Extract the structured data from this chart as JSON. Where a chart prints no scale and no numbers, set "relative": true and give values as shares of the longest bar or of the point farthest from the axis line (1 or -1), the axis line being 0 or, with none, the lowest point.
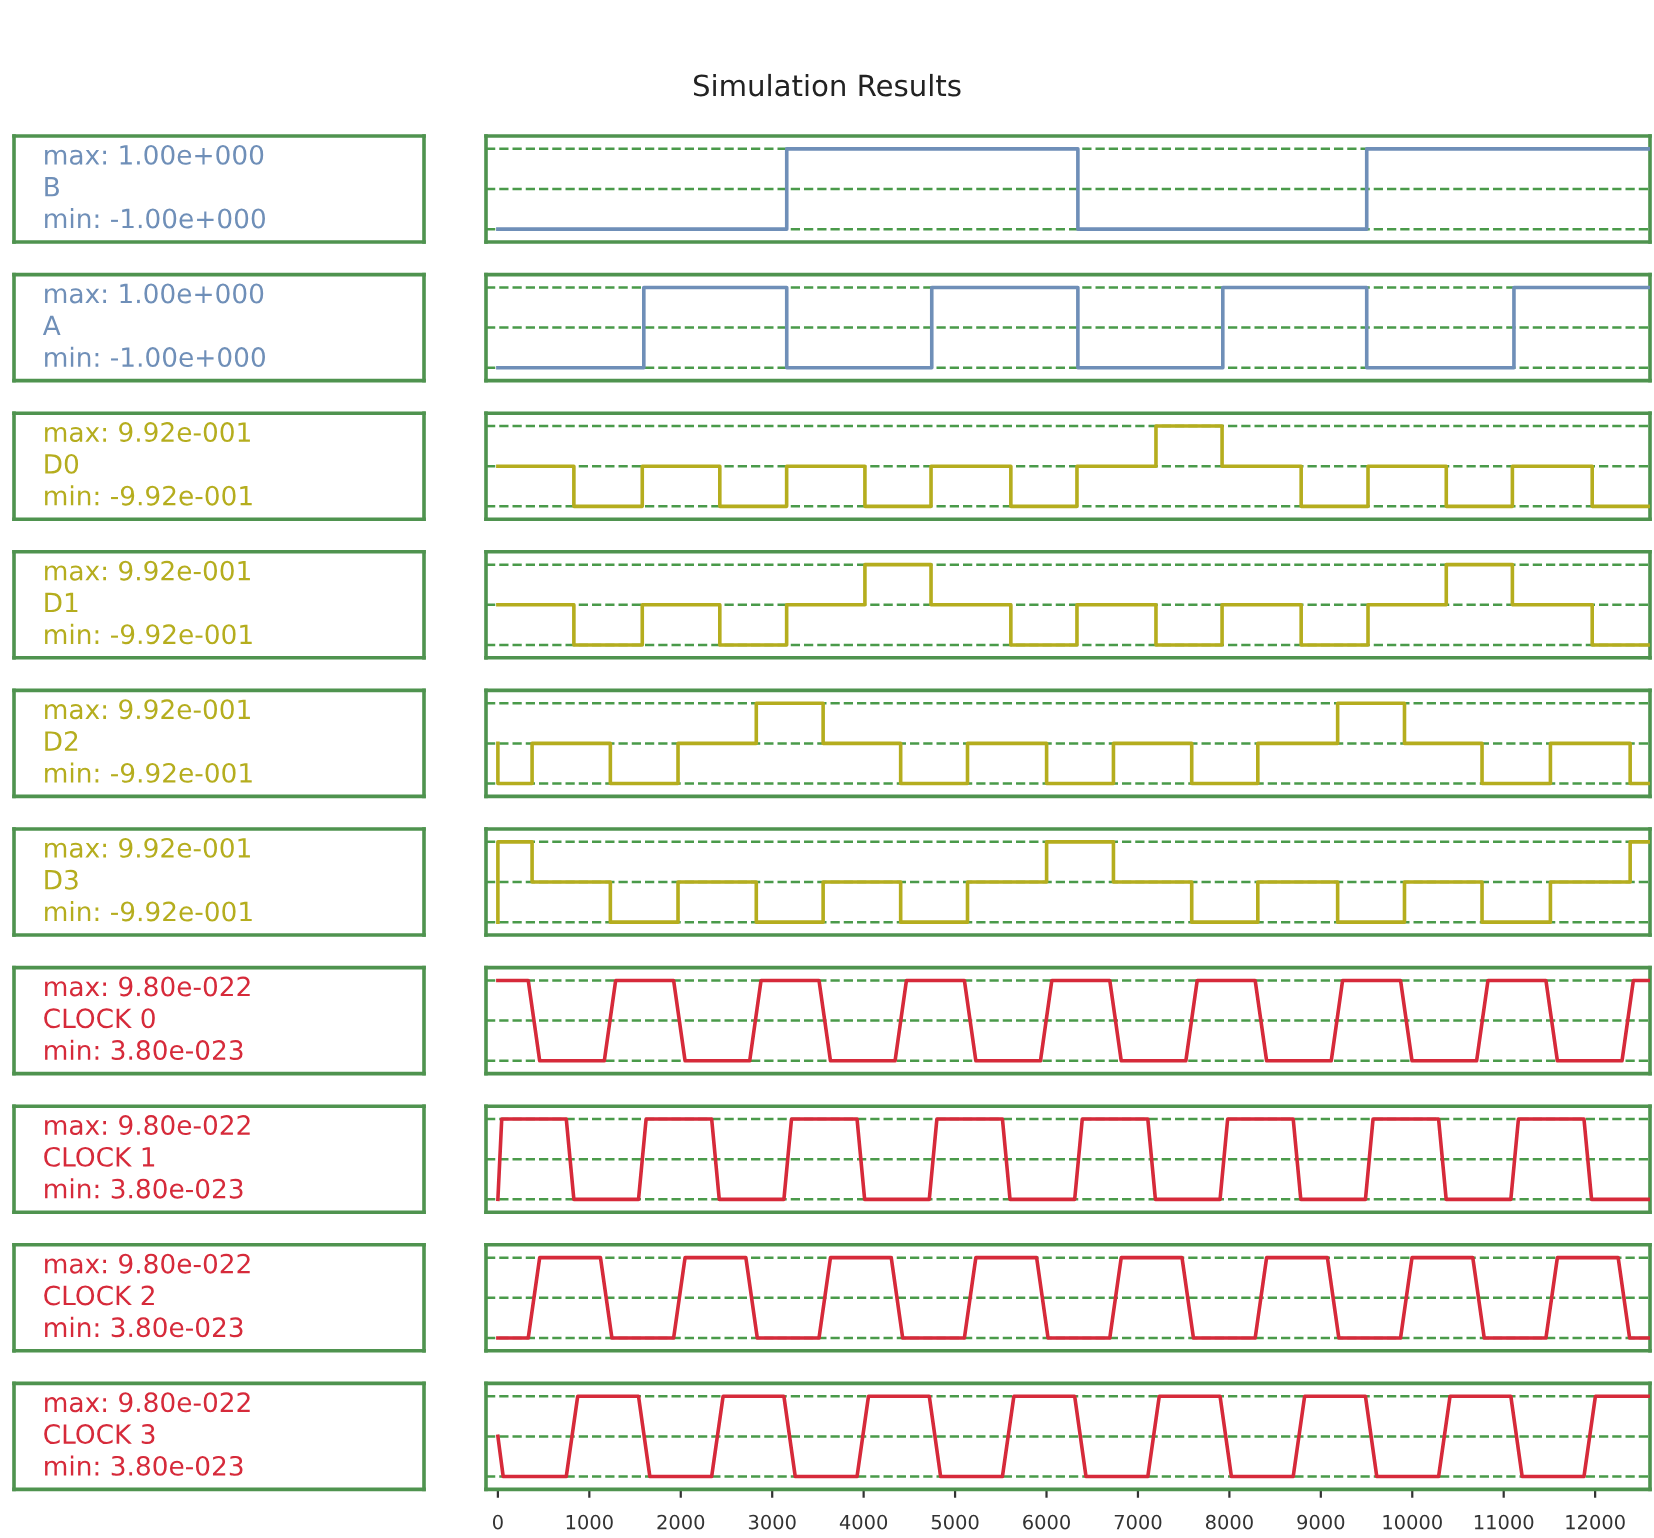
{
  "chart_data": [
    {
      "type": "line",
      "title": "Simulation Results",
      "relative": true,
      "xlim": [
        -130,
        12600
      ],
      "tick_labels": false,
      "annotations": [
        "max: 1.00e+000",
        "min: -1.00e+000"
      ],
      "ref_lines": [
        {
          "axis": "y",
          "value": 0,
          "color": "#4a9a4a",
          "line_style": "dashed"
        },
        {
          "axis": "y",
          "value": 0.5,
          "color": "#4a9a4a",
          "line_style": "dashed"
        },
        {
          "axis": "y",
          "value": 1,
          "color": "#4a9a4a",
          "line_style": "dashed"
        }
      ],
      "series": [
        {
          "name": "B",
          "color": "#6f8fb8",
          "x": [
            0,
            3159,
            3159,
            6343,
            6343,
            9502,
            9502,
            12600
          ],
          "values": [
            0,
            0,
            1,
            1,
            0,
            0,
            1,
            1
          ]
        }
      ]
    },
    {
      "type": "line",
      "relative": true,
      "xlim": [
        -130,
        12600
      ],
      "tick_labels": false,
      "annotations": [
        "max: 1.00e+000",
        "min: -1.00e+000"
      ],
      "ref_lines": [
        {
          "axis": "y",
          "value": 0,
          "color": "#4a9a4a",
          "line_style": "dashed"
        },
        {
          "axis": "y",
          "value": 0.5,
          "color": "#4a9a4a",
          "line_style": "dashed"
        },
        {
          "axis": "y",
          "value": 1,
          "color": "#4a9a4a",
          "line_style": "dashed"
        }
      ],
      "series": [
        {
          "name": "A",
          "color": "#6f8fb8",
          "x": [
            0,
            1596,
            1596,
            3159,
            3159,
            4745,
            4745,
            6343,
            6343,
            7928,
            7928,
            9502,
            9502,
            11112,
            11112,
            12600
          ],
          "values": [
            0,
            0,
            1,
            1,
            0,
            0,
            1,
            1,
            0,
            0,
            1,
            1,
            0,
            0,
            1,
            1
          ]
        }
      ]
    },
    {
      "type": "line",
      "relative": true,
      "xlim": [
        -130,
        12600
      ],
      "tick_labels": false,
      "annotations": [
        "max: 9.92e-001",
        "min: -9.92e-001"
      ],
      "ref_lines": [
        {
          "axis": "y",
          "value": 0,
          "color": "#4a9a4a",
          "line_style": "dashed"
        },
        {
          "axis": "y",
          "value": 0.5,
          "color": "#4a9a4a",
          "line_style": "dashed"
        },
        {
          "axis": "y",
          "value": 1,
          "color": "#4a9a4a",
          "line_style": "dashed"
        }
      ],
      "series": [
        {
          "name": "D0",
          "color": "#b5ad1e",
          "x": [
            0,
            831,
            831,
            1579,
            1579,
            2427,
            2427,
            3158,
            3158,
            4014,
            4014,
            4737,
            4737,
            5610,
            5610,
            6333,
            6333,
            7197,
            7197,
            7920,
            7920,
            8785,
            8785,
            9516,
            9516,
            10372,
            10372,
            11095,
            11095,
            11968,
            11968,
            12600
          ],
          "values": [
            0.5,
            0.5,
            0,
            0,
            0.5,
            0.5,
            0,
            0,
            0.5,
            0.5,
            0,
            0,
            0.5,
            0.5,
            0,
            0,
            0.5,
            0.5,
            1,
            1,
            0.5,
            0.5,
            0,
            0,
            0.5,
            0.5,
            0,
            0,
            0.5,
            0.5,
            0,
            0
          ]
        }
      ]
    },
    {
      "type": "line",
      "relative": true,
      "xlim": [
        -130,
        12600
      ],
      "tick_labels": false,
      "annotations": [
        "max: 9.92e-001",
        "min: -9.92e-001"
      ],
      "ref_lines": [
        {
          "axis": "y",
          "value": 0,
          "color": "#4a9a4a",
          "line_style": "dashed"
        },
        {
          "axis": "y",
          "value": 0.5,
          "color": "#4a9a4a",
          "line_style": "dashed"
        },
        {
          "axis": "y",
          "value": 1,
          "color": "#4a9a4a",
          "line_style": "dashed"
        }
      ],
      "series": [
        {
          "name": "D1",
          "color": "#b5ad1e",
          "x": [
            0,
            831,
            831,
            1579,
            1579,
            2427,
            2427,
            3158,
            3158,
            4014,
            4014,
            4737,
            4737,
            5610,
            5610,
            6333,
            6333,
            7197,
            7197,
            7920,
            7920,
            8785,
            8785,
            9516,
            9516,
            10372,
            10372,
            11095,
            11095,
            11968,
            11968,
            12600
          ],
          "values": [
            0.5,
            0.5,
            0,
            0,
            0.5,
            0.5,
            0,
            0,
            0.5,
            0.5,
            1,
            1,
            0.5,
            0.5,
            0,
            0,
            0.5,
            0.5,
            0,
            0,
            0.5,
            0.5,
            0,
            0,
            0.5,
            0.5,
            1,
            1,
            0.5,
            0.5,
            0,
            0
          ]
        }
      ]
    },
    {
      "type": "line",
      "relative": true,
      "xlim": [
        -130,
        12600
      ],
      "tick_labels": false,
      "annotations": [
        "max: 9.92e-001",
        "min: -9.92e-001"
      ],
      "ref_lines": [
        {
          "axis": "y",
          "value": 0,
          "color": "#4a9a4a",
          "line_style": "dashed"
        },
        {
          "axis": "y",
          "value": 0.5,
          "color": "#4a9a4a",
          "line_style": "dashed"
        },
        {
          "axis": "y",
          "value": 1,
          "color": "#4a9a4a",
          "line_style": "dashed"
        }
      ],
      "series": [
        {
          "name": "D2",
          "color": "#b5ad1e",
          "x": [
            0,
            0,
            374,
            374,
            1230,
            1230,
            1970,
            1970,
            2826,
            2826,
            3557,
            3557,
            4405,
            4405,
            5136,
            5136,
            6001,
            6001,
            6732,
            6732,
            7588,
            7588,
            8311,
            8311,
            9184,
            9184,
            9915,
            9915,
            10763,
            10763,
            11511,
            11511,
            12383,
            12383,
            12600
          ],
          "values": [
            0.5,
            0,
            0,
            0.5,
            0.5,
            0,
            0,
            0.5,
            0.5,
            1,
            1,
            0.5,
            0.5,
            0,
            0,
            0.5,
            0.5,
            0,
            0,
            0.5,
            0.5,
            0,
            0,
            0.5,
            0.5,
            1,
            1,
            0.5,
            0.5,
            0,
            0,
            0.5,
            0.5,
            0,
            0
          ]
        }
      ]
    },
    {
      "type": "line",
      "relative": true,
      "xlim": [
        -130,
        12600
      ],
      "tick_labels": false,
      "annotations": [
        "max: 9.92e-001",
        "min: -9.92e-001"
      ],
      "ref_lines": [
        {
          "axis": "y",
          "value": 0,
          "color": "#4a9a4a",
          "line_style": "dashed"
        },
        {
          "axis": "y",
          "value": 0.5,
          "color": "#4a9a4a",
          "line_style": "dashed"
        },
        {
          "axis": "y",
          "value": 1,
          "color": "#4a9a4a",
          "line_style": "dashed"
        }
      ],
      "series": [
        {
          "name": "D3",
          "color": "#b5ad1e",
          "x": [
            0,
            0,
            374,
            374,
            1230,
            1230,
            1970,
            1970,
            2826,
            2826,
            3557,
            3557,
            4405,
            4405,
            5136,
            5136,
            6001,
            6001,
            6732,
            6732,
            7588,
            7588,
            8311,
            8311,
            9184,
            9184,
            9915,
            9915,
            10763,
            10763,
            11511,
            11511,
            12383,
            12383,
            12600
          ],
          "values": [
            0,
            1,
            1,
            0.5,
            0.5,
            0,
            0,
            0.5,
            0.5,
            0,
            0,
            0.5,
            0.5,
            0,
            0,
            0.5,
            0.5,
            1,
            1,
            0.5,
            0.5,
            0,
            0,
            0.5,
            0.5,
            0,
            0,
            0.5,
            0.5,
            0,
            0,
            0.5,
            0.5,
            1,
            1
          ]
        }
      ]
    },
    {
      "type": "line",
      "relative": true,
      "xlim": [
        -130,
        12600
      ],
      "tick_labels": false,
      "annotations": [
        "max: 9.80e-022",
        "min: 3.80e-023"
      ],
      "ref_lines": [
        {
          "axis": "y",
          "value": 0,
          "color": "#4a9a4a",
          "line_style": "dashed"
        },
        {
          "axis": "y",
          "value": 0.5,
          "color": "#4a9a4a",
          "line_style": "dashed"
        },
        {
          "axis": "y",
          "value": 1,
          "color": "#4a9a4a",
          "line_style": "dashed"
        }
      ],
      "series": [
        {
          "name": "CLOCK 0",
          "color": "#d62a3a",
          "x": [
            0,
            332,
            457,
            1164,
            1288,
            1922,
            2047,
            2754,
            2878,
            3512,
            3637,
            4344,
            4468,
            5102,
            5227,
            5934,
            6058,
            6692,
            6817,
            7524,
            7648,
            8282,
            8407,
            9114,
            9238,
            9872,
            9997,
            10704,
            10828,
            11462,
            11587,
            12294,
            12418,
            12600
          ],
          "values": [
            1,
            1,
            0,
            0,
            1,
            1,
            0,
            0,
            1,
            1,
            0,
            0,
            1,
            1,
            0,
            0,
            1,
            1,
            0,
            0,
            1,
            1,
            0,
            0,
            1,
            1,
            0,
            0,
            1,
            1,
            0,
            0,
            1,
            1
          ]
        }
      ]
    },
    {
      "type": "line",
      "relative": true,
      "xlim": [
        -130,
        12600
      ],
      "tick_labels": false,
      "annotations": [
        "max: 9.80e-022",
        "min: 3.80e-023"
      ],
      "ref_lines": [
        {
          "axis": "y",
          "value": 0,
          "color": "#4a9a4a",
          "line_style": "dashed"
        },
        {
          "axis": "y",
          "value": 0.5,
          "color": "#4a9a4a",
          "line_style": "dashed"
        },
        {
          "axis": "y",
          "value": 1,
          "color": "#4a9a4a",
          "line_style": "dashed"
        }
      ],
      "series": [
        {
          "name": "CLOCK 1",
          "color": "#d62a3a",
          "x": [
            0,
            42,
            748,
            831,
            1538,
            1621,
            2338,
            2421,
            3128,
            3211,
            3928,
            4011,
            4718,
            4801,
            5518,
            5601,
            6308,
            6391,
            7108,
            7191,
            7898,
            7981,
            8698,
            8781,
            9488,
            9571,
            10288,
            10371,
            11078,
            11161,
            11878,
            11961,
            12600
          ],
          "values": [
            0,
            1,
            1,
            0,
            0,
            1,
            1,
            0,
            0,
            1,
            1,
            0,
            0,
            1,
            1,
            0,
            0,
            1,
            1,
            0,
            0,
            1,
            1,
            0,
            0,
            1,
            1,
            0,
            0,
            1,
            1,
            0,
            0
          ]
        }
      ]
    },
    {
      "type": "line",
      "relative": true,
      "xlim": [
        -130,
        12600
      ],
      "tick_labels": false,
      "annotations": [
        "max: 9.80e-022",
        "min: 3.80e-023"
      ],
      "ref_lines": [
        {
          "axis": "y",
          "value": 0,
          "color": "#4a9a4a",
          "line_style": "dashed"
        },
        {
          "axis": "y",
          "value": 0.5,
          "color": "#4a9a4a",
          "line_style": "dashed"
        },
        {
          "axis": "y",
          "value": 1,
          "color": "#4a9a4a",
          "line_style": "dashed"
        }
      ],
      "series": [
        {
          "name": "CLOCK 2",
          "color": "#d62a3a",
          "x": [
            0,
            332,
            457,
            1122,
            1247,
            1922,
            2047,
            2712,
            2837,
            3512,
            3637,
            4302,
            4427,
            5102,
            5227,
            5892,
            6017,
            6692,
            6817,
            7482,
            7607,
            8282,
            8407,
            9072,
            9197,
            9872,
            9997,
            10662,
            10787,
            11462,
            11587,
            12252,
            12377,
            12600
          ],
          "values": [
            0,
            0,
            1,
            1,
            0,
            0,
            1,
            1,
            0,
            0,
            1,
            1,
            0,
            0,
            1,
            1,
            0,
            0,
            1,
            1,
            0,
            0,
            1,
            1,
            0,
            0,
            1,
            1,
            0,
            0,
            1,
            1,
            0,
            0
          ]
        }
      ]
    },
    {
      "type": "line",
      "relative": true,
      "xlim": [
        -130,
        12600
      ],
      "tick_labels": "x",
      "xticks": [
        0,
        1000,
        2000,
        3000,
        4000,
        5000,
        6000,
        7000,
        8000,
        9000,
        10000,
        11000,
        12000
      ],
      "annotations": [
        "max: 9.80e-022",
        "min: 3.80e-023"
      ],
      "ref_lines": [
        {
          "axis": "y",
          "value": 0,
          "color": "#4a9a4a",
          "line_style": "dashed"
        },
        {
          "axis": "y",
          "value": 0.5,
          "color": "#4a9a4a",
          "line_style": "dashed"
        },
        {
          "axis": "y",
          "value": 1,
          "color": "#4a9a4a",
          "line_style": "dashed"
        }
      ],
      "series": [
        {
          "name": "CLOCK 3",
          "color": "#d62a3a",
          "x": [
            0,
            58,
            748,
            873,
            1538,
            1662,
            2338,
            2463,
            3128,
            3252,
            3928,
            4053,
            4718,
            4842,
            5518,
            5643,
            6308,
            6432,
            7108,
            7233,
            7898,
            8022,
            8698,
            8823,
            9488,
            9612,
            10288,
            10413,
            11078,
            11202,
            11878,
            12003,
            12600
          ],
          "values": [
            0.5,
            0,
            0,
            1,
            1,
            0,
            0,
            1,
            1,
            0,
            0,
            1,
            1,
            0,
            0,
            1,
            1,
            0,
            0,
            1,
            1,
            0,
            0,
            1,
            1,
            0,
            0,
            1,
            1,
            0,
            0,
            1,
            1
          ]
        }
      ]
    }
  ]
}
